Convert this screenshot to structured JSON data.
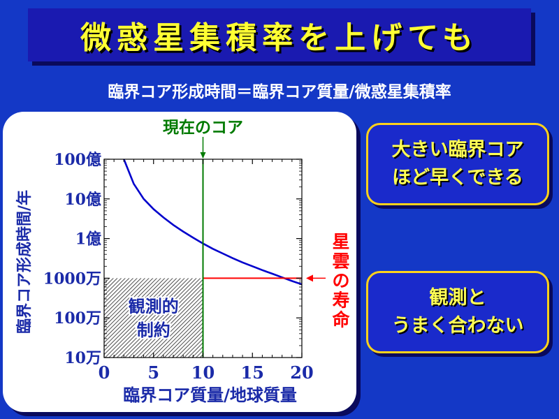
{
  "title": "微惑星集積率を上げても",
  "subtitle": "臨界コア形成時間＝臨界コア質量/微惑星集積率",
  "callouts": [
    {
      "lines": [
        "大きい臨界コア",
        "ほど早くできる"
      ]
    },
    {
      "lines": [
        "観測と",
        "うまく合わない"
      ]
    }
  ],
  "colors": {
    "background": "#1438c6",
    "title_text": "#ffff33",
    "callout_text": "#ffff55",
    "callout_border": "#ffd21a",
    "curve": "#0000cc",
    "current_core_line": "#007a00",
    "nebula_lifetime_line": "#ff0000",
    "axis_labels": "#1a2aa8"
  },
  "chart_data": {
    "type": "line",
    "xlabel": "臨界コア質量/地球質量",
    "ylabel": "臨界コア形成時間/年",
    "xlim": [
      0,
      20
    ],
    "x_ticks": [
      0,
      5,
      10,
      15,
      20
    ],
    "y_scale": "log",
    "ylim": [
      100000,
      10000000000
    ],
    "y_ticks": [
      {
        "value": 100000,
        "label": "10万"
      },
      {
        "value": 1000000,
        "label": "100万"
      },
      {
        "value": 10000000,
        "label": "1000万"
      },
      {
        "value": 100000000,
        "label": "1億"
      },
      {
        "value": 1000000000,
        "label": "10億"
      },
      {
        "value": 10000000000,
        "label": "100億"
      }
    ],
    "series": [
      {
        "x": [
          2,
          3,
          4,
          5,
          6,
          7,
          8,
          9,
          10,
          11,
          12,
          13,
          14,
          15,
          16,
          17,
          18,
          19,
          20
        ],
        "y": [
          10000000000,
          2400000000,
          1000000000,
          550000000,
          340000000,
          220000000,
          150000000,
          105000000,
          75000000,
          55000000,
          42000000,
          32000000,
          25000000,
          20000000,
          16000000,
          13000000,
          10500000,
          8500000,
          7000000
        ]
      }
    ],
    "annotations": {
      "current_core": {
        "label": "現在のコア",
        "x": 10
      },
      "nebula_lifetime": {
        "label": "星雲の寿命",
        "y": 10000000
      },
      "hatched_region": {
        "label_lines": [
          "観測的",
          "制約"
        ],
        "x_max": 10,
        "y_max": 10000000
      }
    },
    "grid": false
  }
}
